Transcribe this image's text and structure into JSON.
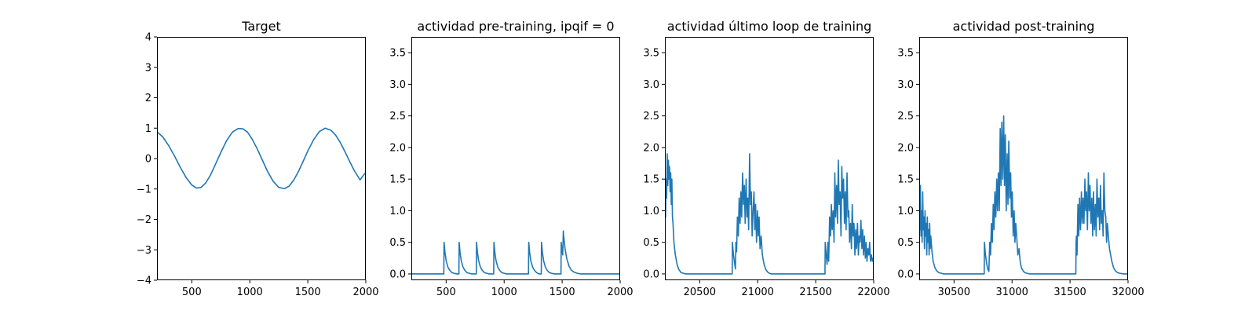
{
  "chart_data": [
    {
      "type": "line",
      "title": "Target",
      "xlim": [
        200,
        2000
      ],
      "ylim": [
        -4,
        4
      ],
      "xticks": [
        500,
        1000,
        1500,
        2000
      ],
      "xtick_labels": [
        "500",
        "1000",
        "1500",
        "2000"
      ],
      "yticks": [
        -4,
        -3,
        -2,
        -1,
        0,
        1,
        2,
        3,
        4
      ],
      "ytick_labels": [
        "−4",
        "−3",
        "−2",
        "−1",
        "0",
        "1",
        "2",
        "3",
        "4"
      ],
      "color": "#1f77b4",
      "series": [
        {
          "x": [
            200,
            250,
            300,
            350,
            400,
            450,
            500,
            540,
            580,
            620,
            660,
            700,
            750,
            800,
            850,
            900,
            940,
            980,
            1020,
            1060,
            1100,
            1150,
            1200,
            1250,
            1300,
            1340,
            1380,
            1420,
            1460,
            1500,
            1550,
            1600,
            1650,
            1700,
            1740,
            1780,
            1820,
            1860,
            1900,
            1950,
            2000
          ],
          "y": [
            0.88,
            0.71,
            0.43,
            0.09,
            -0.28,
            -0.62,
            -0.87,
            -0.97,
            -0.95,
            -0.8,
            -0.55,
            -0.22,
            0.2,
            0.59,
            0.87,
            0.99,
            0.98,
            0.87,
            0.64,
            0.35,
            0.02,
            -0.4,
            -0.74,
            -0.95,
            -0.99,
            -0.9,
            -0.7,
            -0.42,
            -0.09,
            0.25,
            0.62,
            0.89,
            1.0,
            0.93,
            0.77,
            0.53,
            0.23,
            -0.09,
            -0.39,
            -0.7,
            -0.45
          ]
        }
      ]
    },
    {
      "type": "line",
      "title": "actividad pre-training, ipqif = 0",
      "xlim": [
        200,
        2000
      ],
      "ylim": [
        -0.1,
        3.75
      ],
      "xticks": [
        500,
        1000,
        1500,
        2000
      ],
      "xtick_labels": [
        "500",
        "1000",
        "1500",
        "2000"
      ],
      "yticks": [
        0.0,
        0.5,
        1.0,
        1.5,
        2.0,
        2.5,
        3.0,
        3.5
      ],
      "ytick_labels": [
        "0.0",
        "0.5",
        "1.0",
        "1.5",
        "2.0",
        "2.5",
        "3.0",
        "3.5"
      ],
      "color": "#1f77b4",
      "series": [
        {
          "x": [
            200,
            480,
            482,
            490,
            500,
            515,
            530,
            550,
            570,
            590,
            610,
            612,
            620,
            630,
            645,
            660,
            680,
            700,
            720,
            760,
            762,
            770,
            780,
            795,
            810,
            830,
            850,
            870,
            910,
            912,
            920,
            930,
            945,
            960,
            980,
            1000,
            1020,
            1210,
            1212,
            1220,
            1230,
            1245,
            1260,
            1280,
            1300,
            1320,
            1322,
            1330,
            1340,
            1355,
            1370,
            1390,
            1410,
            1430,
            1490,
            1492,
            1500,
            1505,
            1510,
            1512,
            1518,
            1525,
            1540,
            1560,
            1580,
            1600,
            1630,
            1660,
            2000
          ],
          "y": [
            0,
            0,
            0.5,
            0.34,
            0.21,
            0.11,
            0.06,
            0.02,
            0.01,
            0,
            0,
            0.5,
            0.34,
            0.21,
            0.11,
            0.06,
            0.02,
            0.01,
            0,
            0,
            0.5,
            0.34,
            0.21,
            0.11,
            0.06,
            0.02,
            0.01,
            0,
            0,
            0.5,
            0.34,
            0.21,
            0.11,
            0.06,
            0.02,
            0.01,
            0,
            0,
            0.5,
            0.34,
            0.21,
            0.11,
            0.06,
            0.02,
            0,
            0,
            0.5,
            0.34,
            0.21,
            0.11,
            0.06,
            0.02,
            0.01,
            0,
            0,
            0.5,
            0.36,
            0.3,
            0.68,
            0.62,
            0.52,
            0.4,
            0.24,
            0.12,
            0.06,
            0.03,
            0.01,
            0,
            0
          ]
        }
      ]
    },
    {
      "type": "line",
      "title": "actividad último loop de training",
      "xlim": [
        20200,
        22000
      ],
      "ylim": [
        -0.1,
        3.75
      ],
      "xticks": [
        20500,
        21000,
        21500,
        22000
      ],
      "xtick_labels": [
        "20500",
        "21000",
        "21500",
        "22000"
      ],
      "yticks": [
        0.0,
        0.5,
        1.0,
        1.5,
        2.0,
        2.5,
        3.0,
        3.5
      ],
      "ytick_labels": [
        "0.0",
        "0.5",
        "1.0",
        "1.5",
        "2.0",
        "2.5",
        "3.0",
        "3.5"
      ],
      "color": "#1f77b4",
      "series": [
        {
          "x": [
            20200,
            20203,
            20206,
            20210,
            20215,
            20220,
            20225,
            20230,
            20235,
            20240,
            20245,
            20250,
            20255,
            20260,
            20265,
            20270,
            20278,
            20290,
            20305,
            20320,
            20340,
            20360,
            20380,
            20400,
            20780,
            20782,
            20790,
            20800,
            20808,
            20812,
            20818,
            20825,
            20833,
            20840,
            20848,
            20855,
            20862,
            20870,
            20878,
            20885,
            20892,
            20900,
            20908,
            20915,
            20922,
            20930,
            20938,
            20945,
            20952,
            20960,
            20968,
            20975,
            20982,
            20990,
            20998,
            21005,
            21012,
            21020,
            21030,
            21040,
            21055,
            21070,
            21085,
            21100,
            21120,
            21140,
            21160,
            21580,
            21582,
            21590,
            21598,
            21605,
            21612,
            21620,
            21628,
            21635,
            21642,
            21650,
            21658,
            21665,
            21672,
            21680,
            21688,
            21695,
            21702,
            21710,
            21718,
            21725,
            21732,
            21740,
            21748,
            21755,
            21762,
            21770,
            21778,
            21785,
            21792,
            21800,
            21808,
            21815,
            21822,
            21830,
            21838,
            21845,
            21852,
            21860,
            21868,
            21875,
            21882,
            21890,
            21898,
            21905,
            21912,
            21920,
            21928,
            21935,
            21942,
            21950,
            21958,
            21965,
            21972,
            21980,
            21988,
            21995,
            22000
          ],
          "y": [
            0.5,
            1.2,
            0.9,
            1.5,
            1.2,
            1.9,
            1.4,
            1.8,
            1.5,
            1.7,
            1.3,
            1.6,
            1.1,
            1.5,
            0.9,
            0.8,
            0.5,
            0.3,
            0.15,
            0.07,
            0.02,
            0.01,
            0,
            0,
            0,
            0.5,
            0.32,
            0.18,
            0.08,
            0.5,
            0.35,
            0.9,
            0.6,
            1.2,
            0.8,
            1.3,
            0.9,
            1.6,
            1.1,
            1.4,
            0.8,
            1.5,
            0.9,
            1.2,
            0.7,
            1.9,
            1.1,
            1.3,
            0.6,
            1.0,
            1.3,
            0.7,
            1.1,
            0.5,
            1.0,
            0.6,
            0.9,
            0.4,
            0.6,
            0.3,
            0.15,
            0.07,
            0.03,
            0.01,
            0,
            0,
            0,
            0,
            0.5,
            0.3,
            0.15,
            0.5,
            0.2,
            0.9,
            0.6,
            1.1,
            0.7,
            1.0,
            0.5,
            1.6,
            0.9,
            1.4,
            0.8,
            1.8,
            1.1,
            1.3,
            0.6,
            1.7,
            1.2,
            1.5,
            0.8,
            1.3,
            0.7,
            1.6,
            0.9,
            1.0,
            0.5,
            0.8,
            0.4,
            1.1,
            0.6,
            0.8,
            0.3,
            0.7,
            0.4,
            0.8,
            0.3,
            0.6,
            0.5,
            0.85,
            0.4,
            0.7,
            0.3,
            0.6,
            0.25,
            0.5,
            0.2,
            0.4,
            0.3,
            0.5,
            0.2,
            0.3,
            0.2,
            0.25,
            0.15
          ]
        }
      ]
    },
    {
      "type": "line",
      "title": "actividad post-training",
      "xlim": [
        30200,
        32000
      ],
      "ylim": [
        -0.1,
        3.75
      ],
      "xticks": [
        30500,
        31000,
        31500,
        32000
      ],
      "xtick_labels": [
        "30500",
        "31000",
        "31500",
        "32000"
      ],
      "yticks": [
        0.0,
        0.5,
        1.0,
        1.5,
        2.0,
        2.5,
        3.0,
        3.5
      ],
      "ytick_labels": [
        "0.0",
        "0.5",
        "1.0",
        "1.5",
        "2.0",
        "2.5",
        "3.0",
        "3.5"
      ],
      "color": "#1f77b4",
      "series": [
        {
          "x": [
            30200,
            30205,
            30210,
            30215,
            30220,
            30225,
            30230,
            30235,
            30240,
            30245,
            30250,
            30255,
            30260,
            30265,
            30270,
            30275,
            30280,
            30285,
            30290,
            30295,
            30300,
            30310,
            30320,
            30335,
            30350,
            30370,
            30390,
            30410,
            30760,
            30762,
            30770,
            30780,
            30790,
            30800,
            30808,
            30815,
            30822,
            30830,
            30838,
            30845,
            30852,
            30860,
            30868,
            30875,
            30882,
            30890,
            30898,
            30905,
            30912,
            30920,
            30928,
            30935,
            30942,
            30950,
            30958,
            30965,
            30972,
            30980,
            30988,
            30995,
            31002,
            31010,
            31018,
            31025,
            31032,
            31040,
            31050,
            31060,
            31070,
            31080,
            31095,
            31110,
            31130,
            31150,
            31550,
            31552,
            31555,
            31560,
            31568,
            31575,
            31582,
            31590,
            31598,
            31605,
            31612,
            31620,
            31628,
            31635,
            31642,
            31650,
            31658,
            31665,
            31672,
            31680,
            31688,
            31695,
            31702,
            31710,
            31718,
            31725,
            31732,
            31740,
            31748,
            31755,
            31762,
            31770,
            31778,
            31785,
            31792,
            31800,
            31808,
            31815,
            31822,
            31830,
            31840,
            31850,
            31860,
            31875,
            31890,
            31910,
            31930,
            31960,
            32000
          ],
          "y": [
            1.2,
            0.7,
            1.4,
            0.6,
            1.0,
            0.5,
            1.3,
            0.7,
            0.9,
            0.4,
            1.0,
            0.6,
            0.8,
            0.3,
            0.9,
            0.5,
            0.7,
            0.3,
            0.8,
            0.4,
            0.6,
            0.35,
            0.2,
            0.1,
            0.05,
            0.02,
            0.01,
            0,
            0,
            0.5,
            0.32,
            0.18,
            0.08,
            0.04,
            0.5,
            0.3,
            0.8,
            0.5,
            1.1,
            0.7,
            1.3,
            0.9,
            1.5,
            1.0,
            1.6,
            1.0,
            2.3,
            1.4,
            2.4,
            1.5,
            2.5,
            1.4,
            2.2,
            1.0,
            1.9,
            1.1,
            2.1,
            1.2,
            1.6,
            0.9,
            1.3,
            0.6,
            1.0,
            0.5,
            0.8,
            0.6,
            0.3,
            0.4,
            0.2,
            0.1,
            0.05,
            0.02,
            0.01,
            0,
            0,
            0.5,
            0.6,
            0.3,
            1.1,
            0.6,
            1.2,
            0.7,
            1.3,
            0.8,
            1.2,
            0.8,
            1.5,
            1.0,
            1.3,
            0.7,
            1.6,
            1.0,
            1.4,
            0.8,
            1.2,
            0.6,
            1.3,
            0.7,
            1.1,
            0.6,
            1.5,
            0.9,
            1.2,
            0.7,
            1.4,
            0.8,
            1.0,
            0.6,
            1.6,
            1.0,
            0.9,
            0.5,
            0.8,
            0.6,
            0.4,
            0.3,
            0.2,
            0.1,
            0.05,
            0.02,
            0.01,
            0,
            0
          ]
        }
      ]
    }
  ]
}
